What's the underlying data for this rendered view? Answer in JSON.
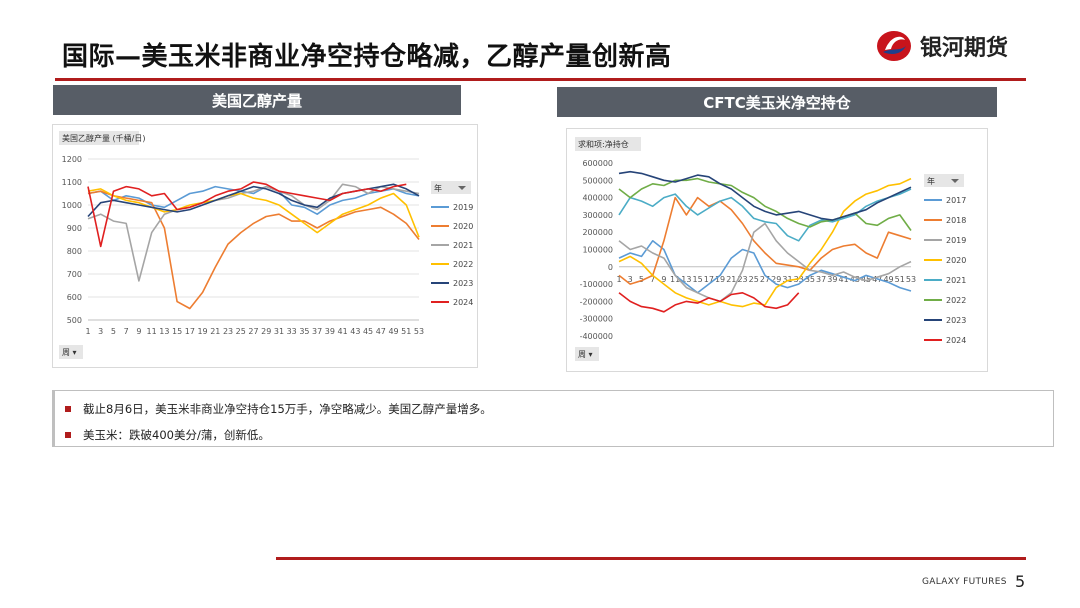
{
  "slide": {
    "title": "国际—美玉米非商业净空持仓略减，乙醇产量创新高",
    "logo_text": "银河期货",
    "footer": "GALAXY FUTURES",
    "page_number": "5",
    "accent_color": "#b01c1c",
    "header_bg": "#575d66"
  },
  "panels": {
    "left_header": "美国乙醇产量",
    "right_header": "CFTC美玉米净空持仓"
  },
  "bullets": [
    "截止8月6日，美玉米非商业净空持仓15万手，净空略减少。美国乙醇产量增多。",
    "美玉米：跌破400美分/蒲，创新低。"
  ],
  "chart_data": [
    {
      "type": "line",
      "title": "美国乙醇产量 (千桶/日)",
      "field_button": "年",
      "axis_button": "周",
      "xlabel": "",
      "ylabel": "",
      "ylim": [
        500,
        1200
      ],
      "yticks": [
        500,
        600,
        700,
        800,
        900,
        1000,
        1100,
        1200
      ],
      "xticks": [
        1,
        3,
        5,
        7,
        9,
        11,
        13,
        15,
        17,
        19,
        21,
        23,
        25,
        27,
        29,
        31,
        33,
        35,
        37,
        39,
        41,
        43,
        45,
        47,
        49,
        51,
        53
      ],
      "x": [
        1,
        3,
        5,
        7,
        9,
        11,
        13,
        15,
        17,
        19,
        21,
        23,
        25,
        27,
        29,
        31,
        33,
        35,
        37,
        39,
        41,
        43,
        45,
        47,
        49,
        51,
        53
      ],
      "legend_position": "right",
      "grid": true,
      "series": [
        {
          "name": "2019",
          "color": "#5b9bd5",
          "values": [
            1050,
            1060,
            1020,
            1040,
            1030,
            1000,
            990,
            1020,
            1050,
            1060,
            1080,
            1070,
            1060,
            1050,
            1080,
            1060,
            1000,
            990,
            960,
            1000,
            1020,
            1030,
            1050,
            1060,
            1070,
            1050,
            1040
          ]
        },
        {
          "name": "2020",
          "color": "#ed7d31",
          "values": [
            1050,
            1060,
            1040,
            1030,
            1020,
            1010,
            900,
            580,
            550,
            620,
            730,
            830,
            880,
            920,
            950,
            960,
            930,
            930,
            900,
            930,
            950,
            970,
            980,
            990,
            960,
            920,
            850
          ]
        },
        {
          "name": "2021",
          "color": "#a5a5a5",
          "values": [
            940,
            960,
            930,
            920,
            670,
            880,
            960,
            980,
            990,
            1010,
            1020,
            1030,
            1050,
            1060,
            1080,
            1060,
            1040,
            1000,
            980,
            1020,
            1090,
            1080,
            1050,
            1080,
            1070,
            1060,
            1050
          ]
        },
        {
          "name": "2022",
          "color": "#ffc000",
          "values": [
            1060,
            1070,
            1040,
            1020,
            1010,
            990,
            970,
            980,
            1000,
            1010,
            1020,
            1040,
            1050,
            1030,
            1020,
            1000,
            960,
            920,
            880,
            920,
            960,
            980,
            1000,
            1030,
            1050,
            1000,
            860
          ]
        },
        {
          "name": "2023",
          "color": "#264478",
          "values": [
            950,
            1010,
            1020,
            1010,
            1000,
            990,
            980,
            970,
            980,
            1000,
            1020,
            1040,
            1060,
            1080,
            1070,
            1050,
            1020,
            1000,
            990,
            1030,
            1050,
            1060,
            1070,
            1080,
            1090,
            1070,
            1040
          ]
        },
        {
          "name": "2024",
          "color": "#e02020",
          "values": [
            1080,
            820,
            1060,
            1080,
            1070,
            1040,
            1050,
            980,
            990,
            1010,
            1040,
            1060,
            1070,
            1100,
            1090,
            1060,
            1050,
            1040,
            1030,
            1020,
            1050,
            1060,
            1070,
            1060,
            1080,
            1090,
            null
          ]
        }
      ]
    },
    {
      "type": "line",
      "title": "求和项:净持仓",
      "field_button": "年",
      "axis_button": "周",
      "xlabel": "",
      "ylabel": "",
      "ylim": [
        -400000,
        600000
      ],
      "yticks": [
        -400000,
        -300000,
        -200000,
        -100000,
        0,
        100000,
        200000,
        300000,
        400000,
        500000,
        600000
      ],
      "xticks": [
        1,
        3,
        5,
        7,
        9,
        11,
        13,
        15,
        17,
        19,
        21,
        23,
        25,
        27,
        29,
        31,
        33,
        35,
        37,
        39,
        41,
        43,
        45,
        47,
        49,
        51,
        53
      ],
      "x": [
        1,
        3,
        5,
        7,
        9,
        11,
        13,
        15,
        17,
        19,
        21,
        23,
        25,
        27,
        29,
        31,
        33,
        35,
        37,
        39,
        41,
        43,
        45,
        47,
        49,
        51,
        53
      ],
      "legend_position": "right",
      "grid": false,
      "series": [
        {
          "name": "2017",
          "color": "#5b9bd5",
          "values": [
            50000,
            80000,
            60000,
            150000,
            100000,
            -50000,
            -100000,
            -150000,
            -100000,
            -50000,
            50000,
            100000,
            80000,
            -50000,
            -100000,
            -120000,
            -100000,
            -50000,
            -20000,
            -40000,
            -60000,
            -80000,
            -50000,
            -70000,
            -90000,
            -120000,
            -140000
          ]
        },
        {
          "name": "2018",
          "color": "#ed7d31",
          "values": [
            -50000,
            -100000,
            -80000,
            -50000,
            150000,
            400000,
            300000,
            400000,
            350000,
            380000,
            330000,
            250000,
            150000,
            80000,
            20000,
            10000,
            0,
            -20000,
            50000,
            100000,
            120000,
            130000,
            80000,
            50000,
            200000,
            180000,
            160000
          ]
        },
        {
          "name": "2019",
          "color": "#a5a5a5",
          "values": [
            150000,
            100000,
            120000,
            80000,
            50000,
            -50000,
            -120000,
            -150000,
            -180000,
            -200000,
            -150000,
            -20000,
            200000,
            250000,
            150000,
            80000,
            30000,
            -20000,
            -30000,
            -50000,
            -30000,
            -60000,
            -80000,
            -60000,
            -40000,
            0,
            30000
          ]
        },
        {
          "name": "2020",
          "color": "#ffc000",
          "values": [
            30000,
            60000,
            20000,
            -50000,
            -100000,
            -150000,
            -180000,
            -200000,
            -220000,
            -200000,
            -220000,
            -230000,
            -210000,
            -220000,
            -120000,
            -80000,
            -70000,
            20000,
            100000,
            200000,
            320000,
            380000,
            420000,
            440000,
            470000,
            480000,
            510000
          ]
        },
        {
          "name": "2021",
          "color": "#4bacc6",
          "values": [
            300000,
            400000,
            380000,
            350000,
            400000,
            420000,
            350000,
            300000,
            340000,
            380000,
            400000,
            350000,
            280000,
            260000,
            250000,
            180000,
            150000,
            240000,
            270000,
            260000,
            280000,
            300000,
            350000,
            380000,
            400000,
            420000,
            450000
          ]
        },
        {
          "name": "2022",
          "color": "#70ad47",
          "values": [
            450000,
            400000,
            450000,
            480000,
            470000,
            500000,
            500000,
            510000,
            490000,
            480000,
            470000,
            430000,
            400000,
            350000,
            320000,
            280000,
            250000,
            230000,
            260000,
            270000,
            290000,
            310000,
            250000,
            240000,
            280000,
            300000,
            210000
          ]
        },
        {
          "name": "2023",
          "color": "#264478",
          "values": [
            540000,
            550000,
            540000,
            520000,
            500000,
            490000,
            510000,
            530000,
            520000,
            480000,
            450000,
            400000,
            350000,
            320000,
            300000,
            310000,
            320000,
            300000,
            280000,
            270000,
            290000,
            310000,
            330000,
            370000,
            400000,
            430000,
            460000
          ]
        },
        {
          "name": "2024",
          "color": "#e02020",
          "values": [
            -150000,
            -200000,
            -230000,
            -240000,
            -260000,
            -220000,
            -200000,
            -210000,
            -180000,
            -200000,
            -160000,
            -150000,
            -180000,
            -230000,
            -240000,
            -220000,
            -150000,
            null,
            null,
            null,
            null,
            null,
            null,
            null,
            null,
            null,
            null
          ]
        }
      ]
    }
  ]
}
